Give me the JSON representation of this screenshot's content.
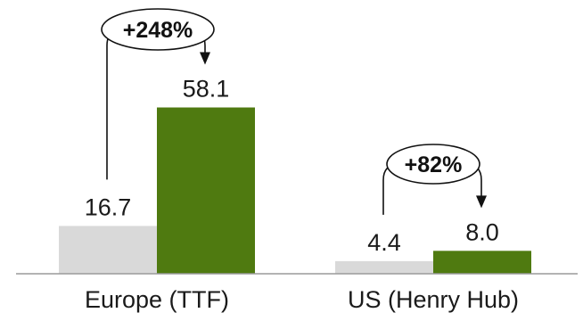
{
  "chart_data": {
    "type": "bar",
    "title": "",
    "xlabel": "",
    "ylabel": "",
    "categories": [
      "Europe (TTF)",
      "US (Henry Hub)"
    ],
    "series": [
      {
        "values": [
          16.7,
          4.4
        ],
        "color": "#d9d9d9"
      },
      {
        "values": [
          58.1,
          8.0
        ],
        "color": "#4f7a10"
      }
    ],
    "value_labels": [
      [
        "16.7",
        "4.4"
      ],
      [
        "58.1",
        "8.0"
      ]
    ],
    "annotations": [
      {
        "category": "Europe (TTF)",
        "text": "+248%"
      },
      {
        "category": "US (Henry Hub)",
        "text": "+82%"
      }
    ],
    "ylim": [
      0,
      62
    ],
    "grid": false,
    "legend": "none"
  }
}
